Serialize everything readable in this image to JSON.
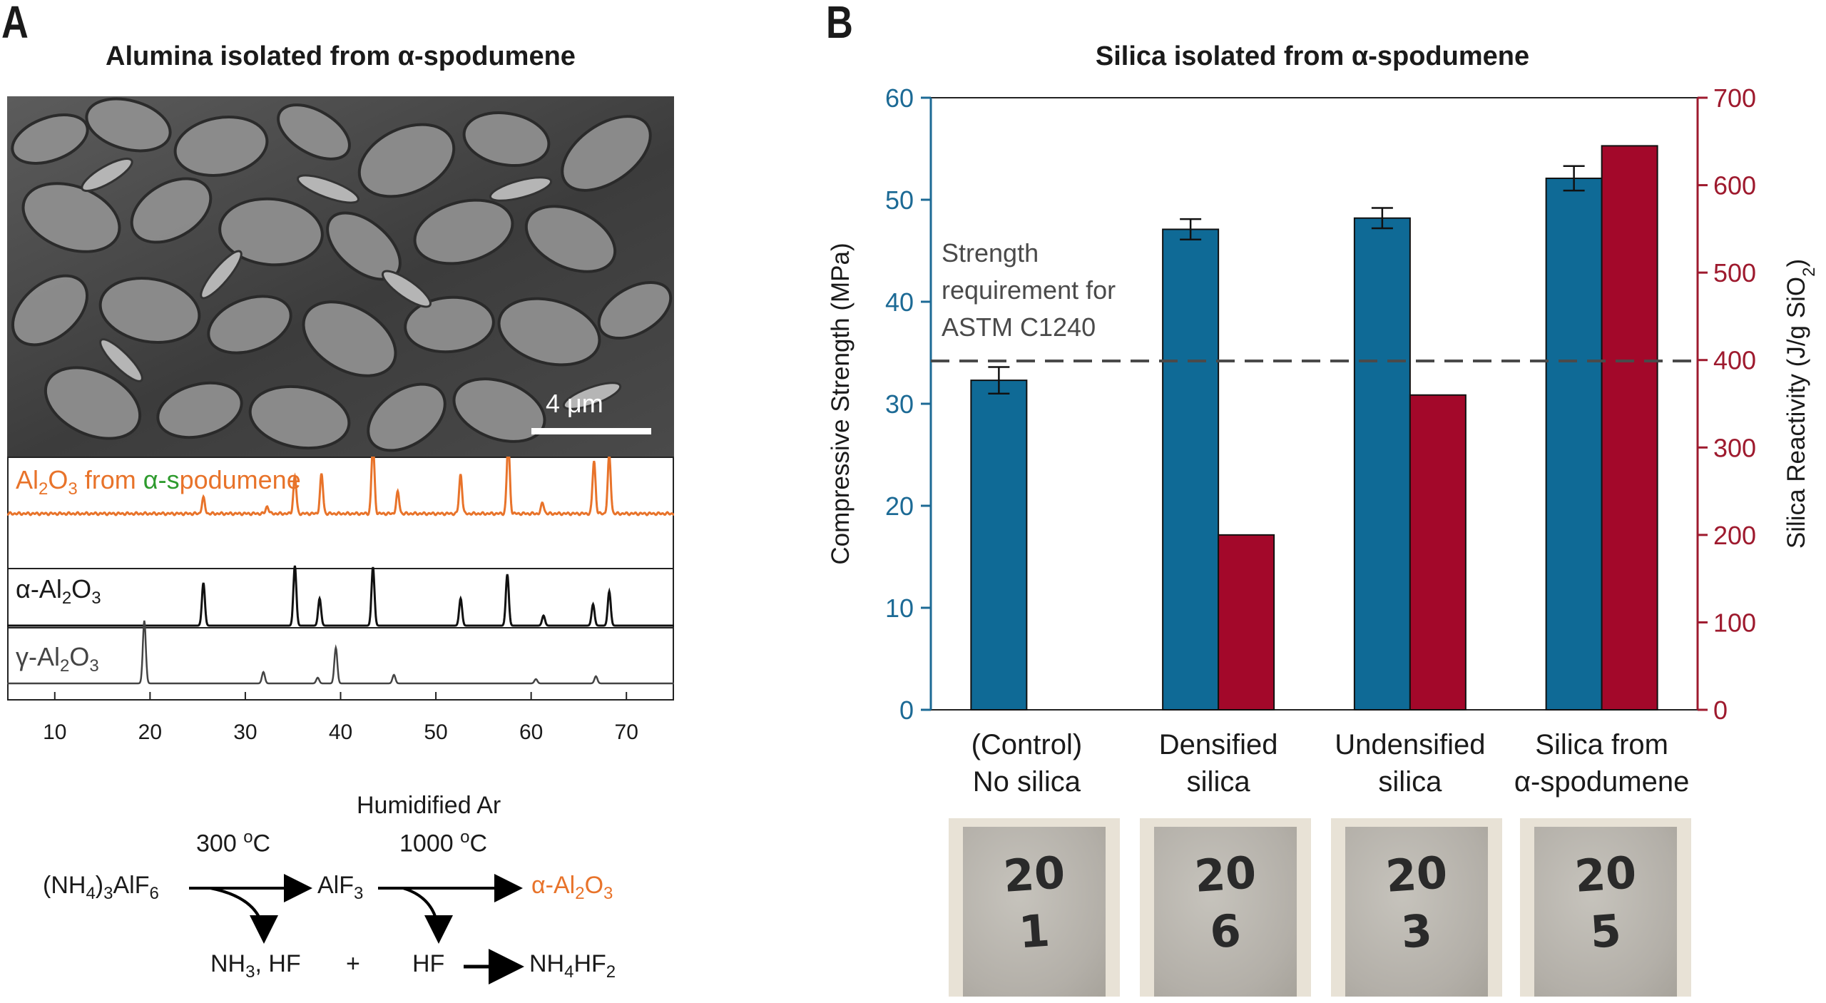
{
  "panel_a": {
    "letter": "A",
    "title": "Alumina isolated from α-spodumene",
    "scale_bar": "4 μm",
    "xrd": {
      "traces": [
        {
          "label": "Al2O3 from α-spodumene",
          "color": "#e8732a",
          "label_accent": "#2e9b2e"
        },
        {
          "label": "α-Al2O3",
          "color": "#111111"
        },
        {
          "label": "γ-Al2O3",
          "color": "#444444"
        }
      ],
      "x_ticks": [
        "10",
        "20",
        "30",
        "40",
        "50",
        "60",
        "70"
      ],
      "xlim": [
        5,
        75
      ]
    },
    "reaction": {
      "reactant": "(NH4)3AlF6",
      "step1_condition": "300 oC",
      "intermediate": "AlF3",
      "step2_condition_top": "Humidified Ar",
      "step2_condition": "1000 oC",
      "product": "α-Al2O3",
      "byproduct1": "NH3, HF",
      "plus": "+",
      "byproduct2": "HF",
      "final": "NH4HF2",
      "product_color": "#e8732a"
    }
  },
  "panel_b": {
    "letter": "B",
    "photos": [
      {
        "line1": "20",
        "line2": "1"
      },
      {
        "line1": "20",
        "line2": "6"
      },
      {
        "line1": "20",
        "line2": "3"
      },
      {
        "line1": "20",
        "line2": "5"
      }
    ]
  },
  "chart_data": {
    "type": "bar",
    "title": "Silica isolated from α-spodumene",
    "categories": [
      [
        "(Control)",
        "No silica"
      ],
      [
        "Densified",
        "silica"
      ],
      [
        "Undensified",
        "silica"
      ],
      [
        "Silica from",
        "α-spodumene"
      ]
    ],
    "ylabel": "Compressive Strength (MPa)",
    "y2label": "Silica Reactivity (J/g SiO2)",
    "ylim": [
      0,
      60
    ],
    "y2lim": [
      0,
      700
    ],
    "yticks": [
      0,
      10,
      20,
      30,
      40,
      50,
      60
    ],
    "y2ticks": [
      0,
      100,
      200,
      300,
      400,
      500,
      600,
      700
    ],
    "series": [
      {
        "axis": "left",
        "color": "#0f6a96",
        "values": [
          32.3,
          47.1,
          48.2,
          52.1
        ],
        "errors": [
          1.3,
          1.0,
          1.0,
          1.2
        ]
      },
      {
        "axis": "right",
        "color": "#a3082a",
        "values": [
          null,
          200,
          360,
          645
        ]
      }
    ],
    "threshold": {
      "value": 34.2,
      "label": [
        "Strength",
        "requirement for",
        "ASTM C1240"
      ]
    },
    "left_axis_color": "#1c6a95",
    "right_axis_color": "#9e1a2e",
    "grid": false
  }
}
